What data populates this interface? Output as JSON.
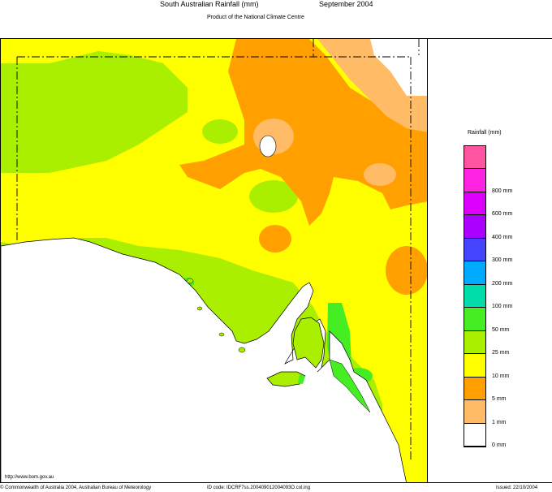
{
  "header": {
    "title": "South Australian Rainfall (mm)",
    "period": "September 2004",
    "subtitle": "Product of the National Climate Centre"
  },
  "legend": {
    "title": "Rainfall (mm)",
    "items": [
      {
        "label": "",
        "color": "#ff55a0"
      },
      {
        "label": "800 mm",
        "color": "#ff22e0"
      },
      {
        "label": "600 mm",
        "color": "#dd00ff"
      },
      {
        "label": "400 mm",
        "color": "#aa00ff"
      },
      {
        "label": "300 mm",
        "color": "#4444ff"
      },
      {
        "label": "200 mm",
        "color": "#00aaff"
      },
      {
        "label": "100 mm",
        "color": "#00ddaa"
      },
      {
        "label": "50 mm",
        "color": "#44ee22"
      },
      {
        "label": "25 mm",
        "color": "#aaee00"
      },
      {
        "label": "10 mm",
        "color": "#ffff00"
      },
      {
        "label": "5 mm",
        "color": "#ffa000"
      },
      {
        "label": "1 mm",
        "color": "#ffbb66"
      },
      {
        "label": "0 mm",
        "color": "#ffffff"
      }
    ]
  },
  "footer": {
    "url": "http://www.bom.gov.au",
    "copyright": "© Commonwealth of Australia 2004, Australian Bureau of Meteorology",
    "id_code": "ID code: IDCRF7ss.200409012004093O.col.ing",
    "issued": "Issued: 22/10/2004"
  },
  "colors": {
    "ocean": "#ffffff",
    "border": "#000000"
  }
}
